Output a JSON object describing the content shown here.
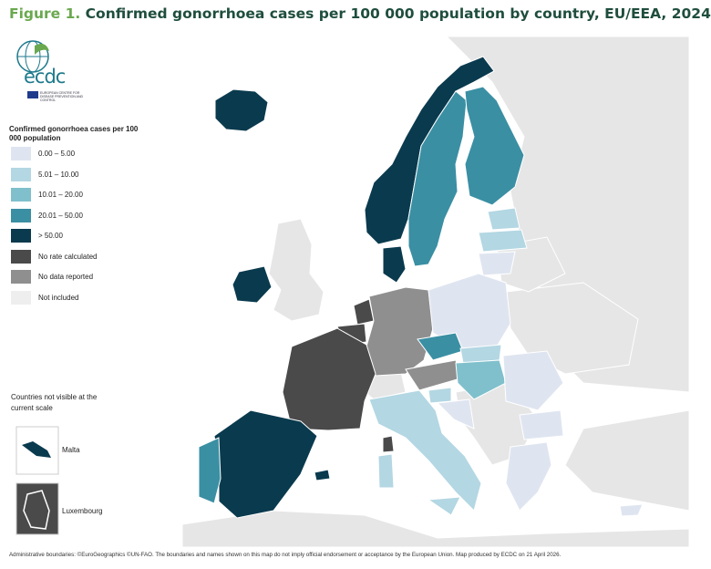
{
  "title": {
    "prefix": "Figure 1.",
    "text": "Confirmed gonorrhoea cases per 100 000 population by country, EU/EEA, 2024"
  },
  "logo": {
    "name": "ecdc",
    "subtitle": "EUROPEAN CENTRE FOR DISEASE PREVENTION AND CONTROL"
  },
  "legend": {
    "title": "Confirmed gonorrhoea cases per 100 000 population",
    "items": [
      {
        "label": "0.00 – 5.00",
        "color": "#dfe5f0"
      },
      {
        "label": "5.01 – 10.00",
        "color": "#b3d7e3"
      },
      {
        "label": "10.01 – 20.00",
        "color": "#7fc0cc"
      },
      {
        "label": "20.01 – 50.00",
        "color": "#3a8fa3"
      },
      {
        "label": "> 50.00",
        "color": "#0a3a4e"
      },
      {
        "label": "No rate calculated",
        "color": "#4a4a4a"
      },
      {
        "label": "No data reported",
        "color": "#8f8f8f"
      },
      {
        "label": "Not included",
        "color": "#eeeeee"
      }
    ]
  },
  "not_visible": {
    "heading": "Countries not visible at the current scale",
    "malta": "Malta",
    "luxembourg": "Luxembourg"
  },
  "colors": {
    "background_land": "#d9d9d9",
    "sea": "#ffffff",
    "title_green": "#6aa84f",
    "title_dark": "#1f4e3d"
  },
  "footer": "Administrative boundaries: ©EuroGeographics ©UN-FAO. The boundaries and names shown on this map do not imply official endorsement or acceptance by the European Union. Map produced by ECDC on 21 April 2026."
}
